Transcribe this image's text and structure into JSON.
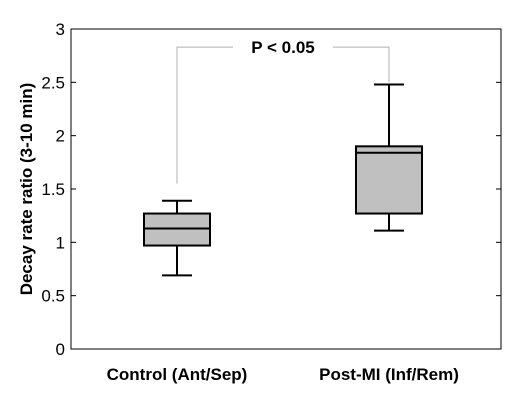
{
  "chart_data": {
    "type": "box",
    "ylabel": "Decay rate ratio (3-10 min)",
    "ylim": [
      0,
      3
    ],
    "yticks": [
      0,
      0.5,
      1,
      1.5,
      2,
      2.5,
      3
    ],
    "ytick_labels": [
      "0",
      "0.5",
      "1",
      "1.5",
      "2",
      "2.5",
      "3"
    ],
    "grid": false,
    "categories": [
      "Control (Ant/Sep)",
      "Post-MI (Inf/Rem)"
    ],
    "boxes": [
      {
        "category": "Control (Ant/Sep)",
        "min": 0.69,
        "q1": 0.97,
        "median": 1.13,
        "q3": 1.27,
        "max": 1.39
      },
      {
        "category": "Post-MI (Inf/Rem)",
        "min": 1.11,
        "q1": 1.27,
        "median": 1.84,
        "q3": 1.9,
        "max": 2.48
      }
    ],
    "annotation": {
      "text": "P < 0.05",
      "bracket_y": 2.83,
      "left_end_y": 1.55,
      "right_end_y": 2.5
    },
    "colors": {
      "box_fill": "#c0c0c0",
      "box_stroke": "#000000",
      "bracket": "#b0b0b0",
      "axis": "#000000"
    }
  }
}
